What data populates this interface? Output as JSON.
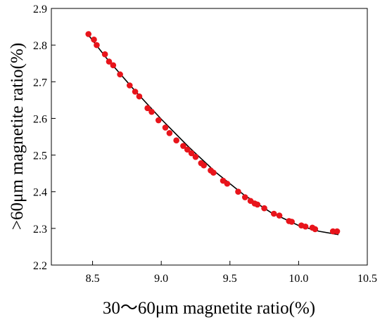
{
  "chart_data": {
    "type": "scatter",
    "xlabel": "30～60μm magnetite ratio(%)",
    "ylabel": ">60μm magnetite ratio(%)",
    "xlim": [
      8.2,
      10.5
    ],
    "ylim": [
      2.2,
      2.9
    ],
    "x_ticks": [
      "8.5",
      "9.0",
      "9.5",
      "10.0",
      "10.5"
    ],
    "x_tick_values": [
      8.5,
      9.0,
      9.5,
      10.0,
      10.5
    ],
    "y_ticks": [
      "2.2",
      "2.3",
      "2.4",
      "2.5",
      "2.6",
      "2.7",
      "2.8",
      "2.9"
    ],
    "y_tick_values": [
      2.2,
      2.3,
      2.4,
      2.5,
      2.6,
      2.7,
      2.8,
      2.9
    ],
    "grid": false,
    "marker_color": "#e8141b",
    "fit_line_color": "#000000",
    "points": [
      {
        "x": 8.47,
        "y": 2.83
      },
      {
        "x": 8.51,
        "y": 2.815
      },
      {
        "x": 8.53,
        "y": 2.8
      },
      {
        "x": 8.59,
        "y": 2.775
      },
      {
        "x": 8.62,
        "y": 2.755
      },
      {
        "x": 8.65,
        "y": 2.745
      },
      {
        "x": 8.7,
        "y": 2.72
      },
      {
        "x": 8.77,
        "y": 2.69
      },
      {
        "x": 8.81,
        "y": 2.673
      },
      {
        "x": 8.84,
        "y": 2.66
      },
      {
        "x": 8.9,
        "y": 2.628
      },
      {
        "x": 8.93,
        "y": 2.618
      },
      {
        "x": 8.98,
        "y": 2.595
      },
      {
        "x": 9.03,
        "y": 2.575
      },
      {
        "x": 9.06,
        "y": 2.56
      },
      {
        "x": 9.11,
        "y": 2.54
      },
      {
        "x": 9.16,
        "y": 2.525
      },
      {
        "x": 9.19,
        "y": 2.515
      },
      {
        "x": 9.22,
        "y": 2.505
      },
      {
        "x": 9.25,
        "y": 2.495
      },
      {
        "x": 9.29,
        "y": 2.478
      },
      {
        "x": 9.31,
        "y": 2.472
      },
      {
        "x": 9.36,
        "y": 2.458
      },
      {
        "x": 9.38,
        "y": 2.452
      },
      {
        "x": 9.45,
        "y": 2.43
      },
      {
        "x": 9.48,
        "y": 2.422
      },
      {
        "x": 9.56,
        "y": 2.4
      },
      {
        "x": 9.61,
        "y": 2.385
      },
      {
        "x": 9.65,
        "y": 2.375
      },
      {
        "x": 9.68,
        "y": 2.368
      },
      {
        "x": 9.7,
        "y": 2.365
      },
      {
        "x": 9.75,
        "y": 2.355
      },
      {
        "x": 9.82,
        "y": 2.34
      },
      {
        "x": 9.86,
        "y": 2.335
      },
      {
        "x": 9.93,
        "y": 2.32
      },
      {
        "x": 9.95,
        "y": 2.318
      },
      {
        "x": 10.02,
        "y": 2.308
      },
      {
        "x": 10.05,
        "y": 2.305
      },
      {
        "x": 10.1,
        "y": 2.302
      },
      {
        "x": 10.12,
        "y": 2.298
      },
      {
        "x": 10.25,
        "y": 2.292
      },
      {
        "x": 10.28,
        "y": 2.292
      }
    ],
    "fit_curve": {
      "x": [
        8.46,
        8.6,
        8.8,
        9.0,
        9.2,
        9.4,
        9.6,
        9.8,
        10.0,
        10.15,
        10.29
      ],
      "y": [
        2.832,
        2.765,
        2.679,
        2.598,
        2.522,
        2.452,
        2.392,
        2.343,
        2.308,
        2.292,
        2.283
      ]
    }
  }
}
